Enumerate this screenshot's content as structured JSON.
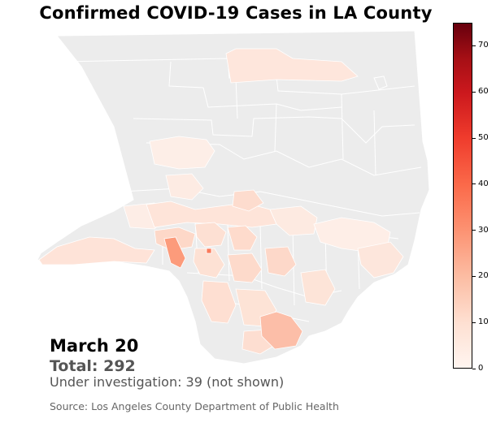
{
  "title": "Confirmed COVID-19 Cases in LA County",
  "date": "March 20",
  "total": "Total: 292",
  "under_investigation": "Under investigation: 39 (not shown)",
  "source": "Source: Los Angeles County Department of Public Health",
  "colorbar": {
    "min": 0,
    "max": 75,
    "ticks": [
      "0",
      "10",
      "20",
      "30",
      "40",
      "50",
      "60",
      "70"
    ],
    "colormap": "Reds",
    "low_color": "#fff5f0",
    "high_color": "#67000d"
  },
  "map_colors": {
    "no_data": "#ececec",
    "boundary": "#ffffff"
  }
}
